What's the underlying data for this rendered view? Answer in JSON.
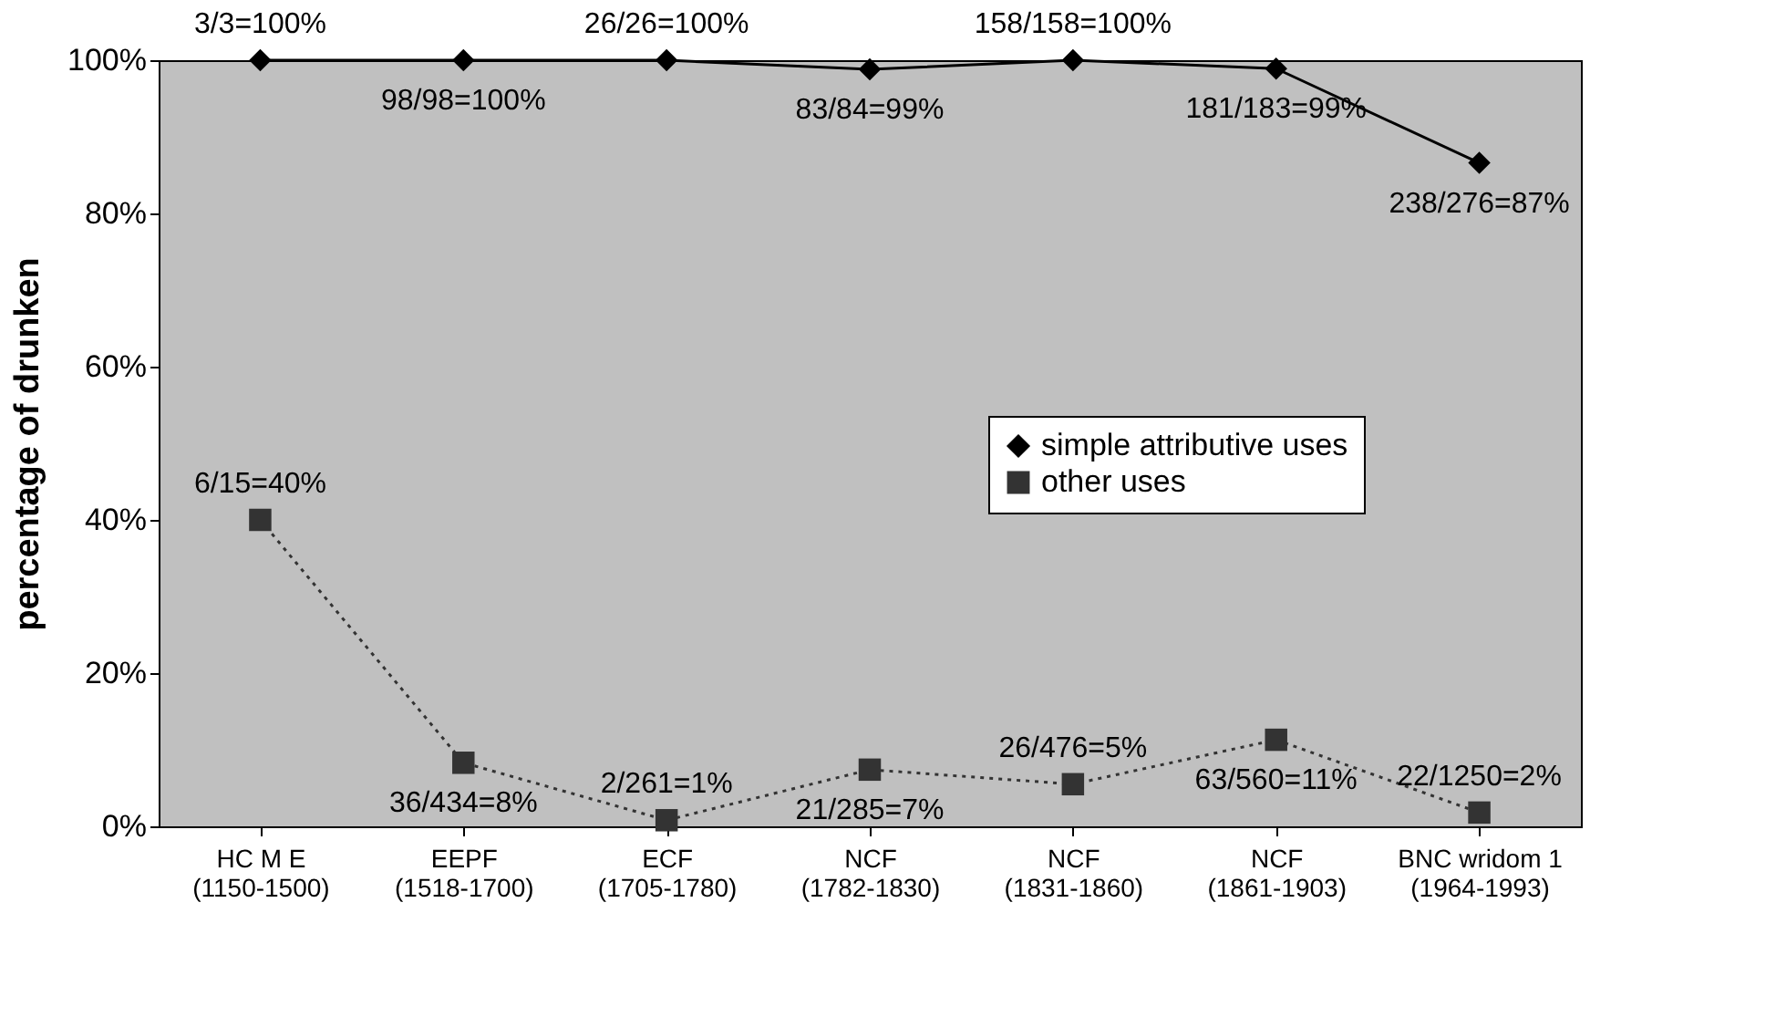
{
  "chart_data": {
    "type": "line",
    "ylabel": "percentage of drunken",
    "categories": [
      "HC M E (1150-1500)",
      "EEPF (1518-1700)",
      "ECF (1705-1780)",
      "NCF (1782-1830)",
      "NCF (1831-1860)",
      "NCF (1861-1903)",
      "BNC wridom 1 (1964-1993)"
    ],
    "series": [
      {
        "name": "simple attributive uses",
        "color": "#000000",
        "marker": "diamond",
        "line_style": "solid",
        "values": [
          100,
          100,
          100,
          98.8,
          100,
          98.9,
          86.6
        ],
        "value_labels": [
          "3/3=100%",
          "98/98=100%",
          "26/26=100%",
          "83/84=99%",
          "158/158=100%",
          "181/183=99%",
          "238/276=87%"
        ]
      },
      {
        "name": "other uses",
        "color": "#333333",
        "marker": "square",
        "line_style": "dotted",
        "values": [
          40,
          8.3,
          0.8,
          7.4,
          5.5,
          11.3,
          1.8
        ],
        "value_labels": [
          "6/15=40%",
          "36/434=8%",
          "2/261=1%",
          "21/285=7%",
          "26/476=5%",
          "63/560=11%",
          "22/1250=2%"
        ]
      }
    ],
    "ylim": [
      0,
      100
    ],
    "yticks": [
      {
        "value": 0,
        "label": "0%"
      },
      {
        "value": 20,
        "label": "20%"
      },
      {
        "value": 40,
        "label": "40%"
      },
      {
        "value": 60,
        "label": "60%"
      },
      {
        "value": 80,
        "label": "80%"
      },
      {
        "value": 100,
        "label": "100%"
      }
    ],
    "grid": false,
    "legend": "right"
  }
}
